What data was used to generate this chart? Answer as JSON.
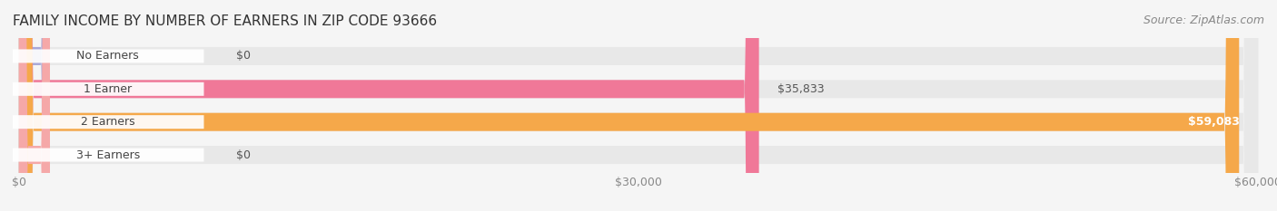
{
  "title": "FAMILY INCOME BY NUMBER OF EARNERS IN ZIP CODE 93666",
  "source": "Source: ZipAtlas.com",
  "categories": [
    "No Earners",
    "1 Earner",
    "2 Earners",
    "3+ Earners"
  ],
  "values": [
    0,
    35833,
    59083,
    0
  ],
  "max_value": 60000,
  "bar_colors": [
    "#a8a8d8",
    "#f07898",
    "#f5a84a",
    "#f5a8a8"
  ],
  "label_bg_colors": [
    "#d8d8f0",
    "#f8a0b8",
    "#f5a84a",
    "#f5c0c0"
  ],
  "value_labels": [
    "$0",
    "$35,833",
    "$59,083",
    "$0"
  ],
  "xticks": [
    0,
    30000,
    60000
  ],
  "xtick_labels": [
    "$0",
    "$30,000",
    "$60,000"
  ],
  "background_color": "#f5f5f5",
  "bar_background_color": "#e8e8e8",
  "title_fontsize": 11,
  "source_fontsize": 9,
  "label_fontsize": 9,
  "value_fontsize": 9,
  "tick_fontsize": 9
}
